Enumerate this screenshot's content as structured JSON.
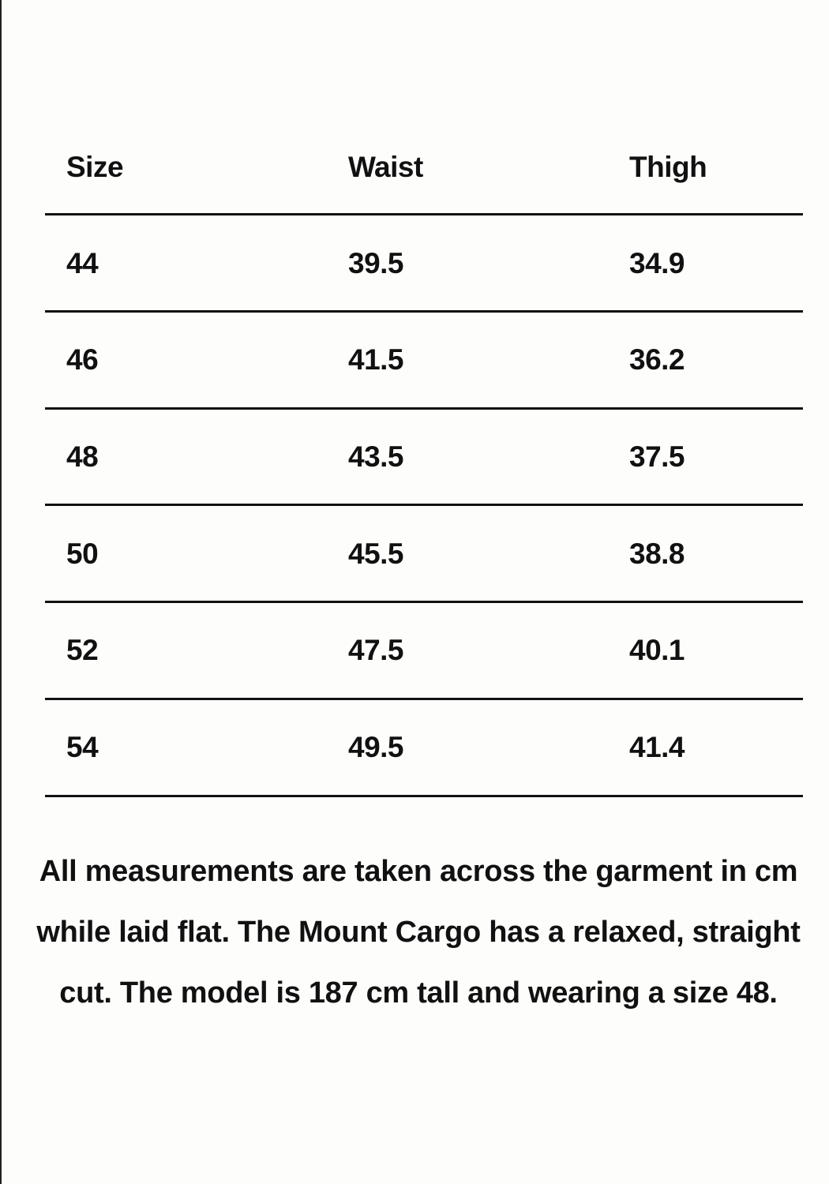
{
  "table": {
    "headers": [
      "Size",
      "Waist",
      "Thigh"
    ],
    "rows": [
      [
        "44",
        "39.5",
        "34.9"
      ],
      [
        "46",
        "41.5",
        "36.2"
      ],
      [
        "48",
        "43.5",
        "37.5"
      ],
      [
        "50",
        "45.5",
        "38.8"
      ],
      [
        "52",
        "47.5",
        "40.1"
      ],
      [
        "54",
        "49.5",
        "41.4"
      ]
    ]
  },
  "note": "All measurements are taken across the garment in cm while laid flat. The Mount Cargo has a relaxed, straight cut. The model is 187 cm tall and wearing a size 48."
}
